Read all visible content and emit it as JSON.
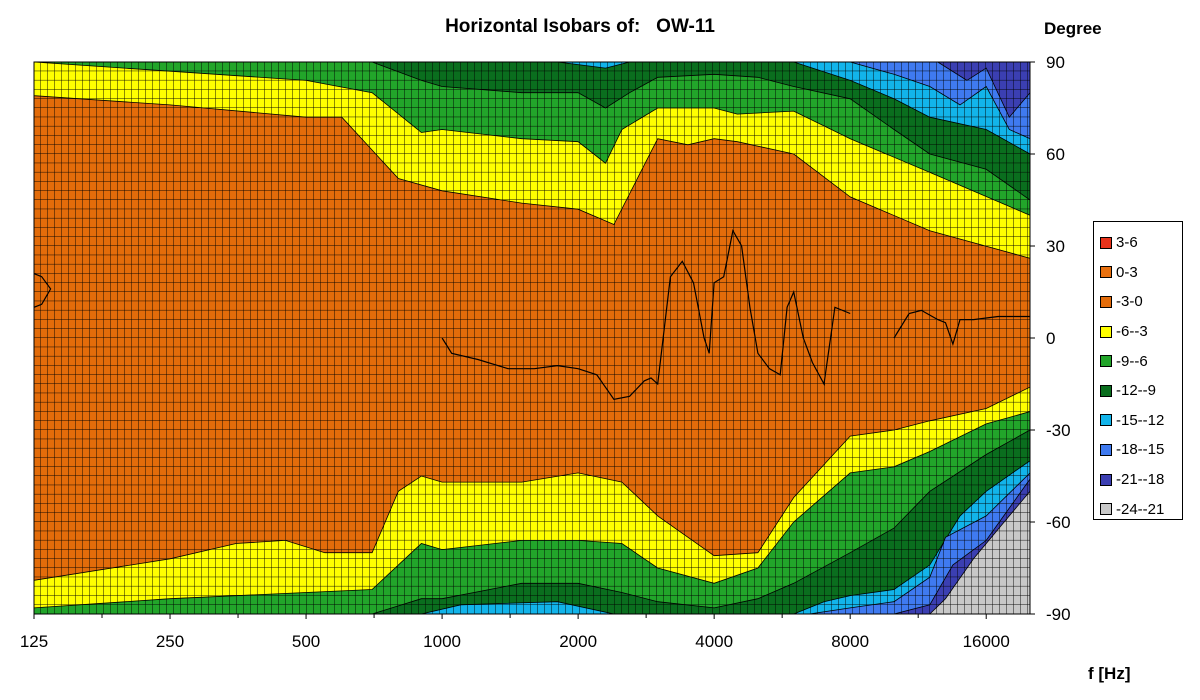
{
  "chart_data": {
    "type": "contour",
    "title": "Horizontal Isobars of:   OW-11",
    "xlabel": "f [Hz]",
    "ylabel": "Degree",
    "x_scale": "log",
    "xlim": [
      125,
      20000
    ],
    "ylim": [
      -90,
      90
    ],
    "x_tick_labels": [
      "125",
      "250",
      "500",
      "1000",
      "2000",
      "4000",
      "8000",
      "16000"
    ],
    "x_tick_values": [
      125,
      250,
      500,
      1000,
      2000,
      4000,
      8000,
      16000
    ],
    "y_tick_labels": [
      "90",
      "60",
      "30",
      "0",
      "-30",
      "-60",
      "-90"
    ],
    "y_tick_values": [
      90,
      60,
      30,
      0,
      -30,
      -60,
      -90
    ],
    "grid": true,
    "legend_position": "right",
    "levels": [
      {
        "label": "3-6",
        "color": "#e8321a"
      },
      {
        "label": "0-3",
        "color": "#e8700e"
      },
      {
        "label": "-3-0",
        "color": "#e36c0a"
      },
      {
        "label": "-6--3",
        "color": "#ffff00"
      },
      {
        "label": "-9--6",
        "color": "#22a52a"
      },
      {
        "label": "-12--9",
        "color": "#0a6e1e"
      },
      {
        "label": "-15--12",
        "color": "#12b4ea"
      },
      {
        "label": "-18--15",
        "color": "#3f7af0"
      },
      {
        "label": "-21--18",
        "color": "#3b3fb2"
      },
      {
        "label": "-24--21",
        "color": "#c8c8c8"
      }
    ],
    "contours_upper": [
      {
        "level": "-6--3",
        "f": [
          125,
          250,
          500,
          600,
          800,
          1000,
          1500,
          2000,
          2400,
          3000,
          3500,
          4000,
          4500,
          6000,
          8000,
          12000,
          20000
        ],
        "deg": [
          79,
          76,
          72,
          72,
          52,
          48,
          44,
          42,
          37,
          65,
          63,
          65,
          64,
          60,
          46,
          35,
          26
        ]
      },
      {
        "level": "-9--6",
        "f": [
          125,
          250,
          500,
          700,
          900,
          1000,
          1500,
          2000,
          2300,
          2500,
          3000,
          4000,
          4500,
          6000,
          8000,
          12000,
          20000
        ],
        "deg": [
          90,
          87,
          84,
          80,
          67,
          68,
          65,
          64,
          57,
          68,
          75,
          75,
          73,
          74,
          65,
          54,
          40
        ]
      },
      {
        "level": "-12--9",
        "f": [
          125,
          250,
          500,
          700,
          900,
          1000,
          1500,
          2000,
          2300,
          2600,
          3000,
          4000,
          5000,
          6000,
          8000,
          10000,
          12000,
          16000,
          20000
        ],
        "deg": [
          90,
          90,
          90,
          90,
          84,
          82,
          80,
          80,
          75,
          80,
          85,
          86,
          85,
          82,
          78,
          68,
          60,
          55,
          45
        ]
      },
      {
        "level": "-15--12",
        "f": [
          900,
          1200,
          1800,
          2300,
          2600,
          3000,
          6000,
          8000,
          10000,
          12000,
          16000,
          20000
        ],
        "deg": [
          90,
          90,
          90,
          88,
          90,
          90,
          90,
          84,
          78,
          72,
          68,
          60
        ]
      },
      {
        "level": "-18--15",
        "f": [
          8000,
          10000,
          12000,
          14000,
          16000,
          18000,
          20000
        ],
        "deg": [
          90,
          86,
          82,
          76,
          82,
          68,
          65
        ]
      },
      {
        "level": "-21--18",
        "f": [
          8500,
          11000,
          12500,
          14500,
          16000,
          18000,
          20000
        ],
        "deg": [
          90,
          90,
          90,
          84,
          88,
          72,
          80
        ]
      },
      {
        "level": "-24--21",
        "f": [
          13000,
          20000
        ],
        "deg": [
          90,
          90
        ]
      }
    ],
    "contours_lower": [
      {
        "level": "-6--3",
        "f": [
          125,
          250,
          350,
          450,
          550,
          700,
          800,
          900,
          1000,
          1500,
          2000,
          2500,
          3000,
          4000,
          5000,
          6000,
          8000,
          10000,
          12000,
          16000,
          20000
        ],
        "deg": [
          -79,
          -72,
          -67,
          -66,
          -70,
          -70,
          -50,
          -45,
          -47,
          -47,
          -44,
          -47,
          -58,
          -71,
          -70,
          -52,
          -32,
          -30,
          -27,
          -23,
          -16
        ]
      },
      {
        "level": "-9--6",
        "f": [
          125,
          250,
          500,
          700,
          900,
          1000,
          1500,
          2000,
          2500,
          3000,
          4000,
          5000,
          6000,
          8000,
          10000,
          12000,
          16000,
          20000
        ],
        "deg": [
          -88,
          -85,
          -83,
          -82,
          -67,
          -69,
          -66,
          -66,
          -67,
          -75,
          -80,
          -75,
          -60,
          -44,
          -42,
          -37,
          -28,
          -24
        ]
      },
      {
        "level": "-12--9",
        "f": [
          125,
          250,
          500,
          700,
          900,
          1000,
          1500,
          2000,
          2500,
          3000,
          4000,
          5000,
          6000,
          8000,
          10000,
          12000,
          16000,
          20000
        ],
        "deg": [
          -90,
          -90,
          -90,
          -90,
          -85,
          -85,
          -80,
          -80,
          -83,
          -86,
          -88,
          -85,
          -80,
          -70,
          -62,
          -50,
          -38,
          -30
        ]
      },
      {
        "level": "-15--12",
        "f": [
          900,
          1100,
          1800,
          2400,
          3000,
          4000,
          6000,
          7000,
          8000,
          10000,
          12000,
          14000,
          16000,
          20000
        ],
        "deg": [
          -90,
          -87,
          -86,
          -90,
          -90,
          -90,
          -90,
          -86,
          -84,
          -82,
          -74,
          -58,
          -50,
          -40
        ]
      },
      {
        "level": "-18--15",
        "f": [
          6500,
          8000,
          10000,
          12000,
          13000,
          16000,
          20000
        ],
        "deg": [
          -90,
          -88,
          -86,
          -78,
          -65,
          -58,
          -44
        ]
      },
      {
        "level": "-21--18",
        "f": [
          7800,
          10000,
          12000,
          13500,
          16000,
          20000
        ],
        "deg": [
          -90,
          -90,
          -87,
          -74,
          -66,
          -46
        ]
      },
      {
        "level": "-24--21",
        "f": [
          12000,
          13000,
          15000,
          18000,
          20000
        ],
        "deg": [
          -90,
          -85,
          -72,
          -58,
          -50
        ]
      }
    ],
    "contour_lines": [
      {
        "f": [
          1000,
          1050,
          1200,
          1400,
          1600,
          1800,
          2000,
          2200,
          2400,
          2600,
          2800,
          2900,
          3000,
          3200,
          3400,
          3600,
          3800,
          3900,
          4000,
          4200,
          4400,
          4600,
          4800,
          5000,
          5300,
          5600,
          5800,
          6000,
          6300,
          6600,
          7000,
          7400,
          8000
        ],
        "deg": [
          0,
          -5,
          -7,
          -10,
          -10,
          -9,
          -10,
          -12,
          -20,
          -19,
          -14,
          -13,
          -15,
          20,
          25,
          18,
          0,
          -5,
          18,
          20,
          35,
          30,
          10,
          -5,
          -10,
          -12,
          10,
          15,
          0,
          -8,
          -15,
          10,
          8
        ]
      },
      {
        "f": [
          10000,
          10800,
          11500,
          12500,
          13000,
          13500,
          14000,
          15000,
          17000,
          20000
        ],
        "deg": [
          0,
          8,
          9,
          6,
          5,
          -2,
          6,
          6,
          7,
          7
        ]
      },
      {
        "f": [
          125,
          130,
          136,
          130,
          125
        ],
        "deg": [
          21,
          20,
          16,
          11,
          10
        ]
      }
    ]
  }
}
